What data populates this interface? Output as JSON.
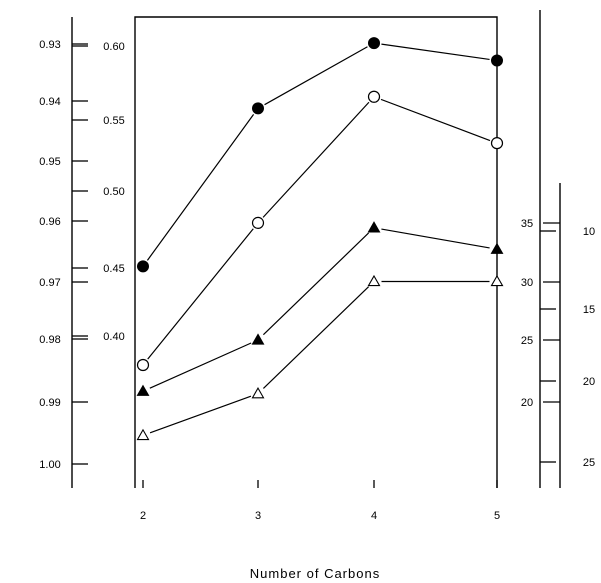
{
  "chart_data": {
    "type": "line",
    "title": "",
    "xlabel": "Number of Carbons",
    "ylabel": "",
    "x": [
      2,
      3,
      4,
      5
    ],
    "x_tick_labels": [
      "2",
      "3",
      "4",
      "5"
    ],
    "axes": {
      "axis1": {
        "ticks": [
          "0.93",
          "0.94",
          "0.95",
          "0.96",
          "0.97",
          "0.98",
          "0.99",
          "1.00"
        ],
        "range": [
          1.0,
          0.93
        ]
      },
      "axis2": {
        "ticks": [
          "0.60",
          "0.55",
          "0.50",
          "0.45",
          "0.40"
        ],
        "range": [
          0.37,
          0.6
        ]
      },
      "axis3": {
        "ticks": [
          "35",
          "30",
          "25",
          "20"
        ],
        "range": [
          17,
          35
        ]
      },
      "axis4": {
        "ticks": [
          "10",
          "15",
          "20",
          "25"
        ],
        "range": [
          10,
          25
        ]
      }
    },
    "series": [
      {
        "marker": "filled-circle",
        "axis": "axis2",
        "values": [
          0.448,
          0.557,
          0.602,
          0.59
        ]
      },
      {
        "marker": "open-circle",
        "axis": "axis2",
        "values": [
          0.38,
          0.478,
          0.565,
          0.533
        ]
      },
      {
        "marker": "filled-triangle",
        "axis": "axis3",
        "values": [
          20.9,
          25.2,
          34.6,
          32.8
        ]
      },
      {
        "marker": "open-triangle",
        "axis": "axis3",
        "values": [
          17.2,
          20.7,
          30.1,
          30.1
        ]
      }
    ],
    "grid": false,
    "legend": "none"
  }
}
